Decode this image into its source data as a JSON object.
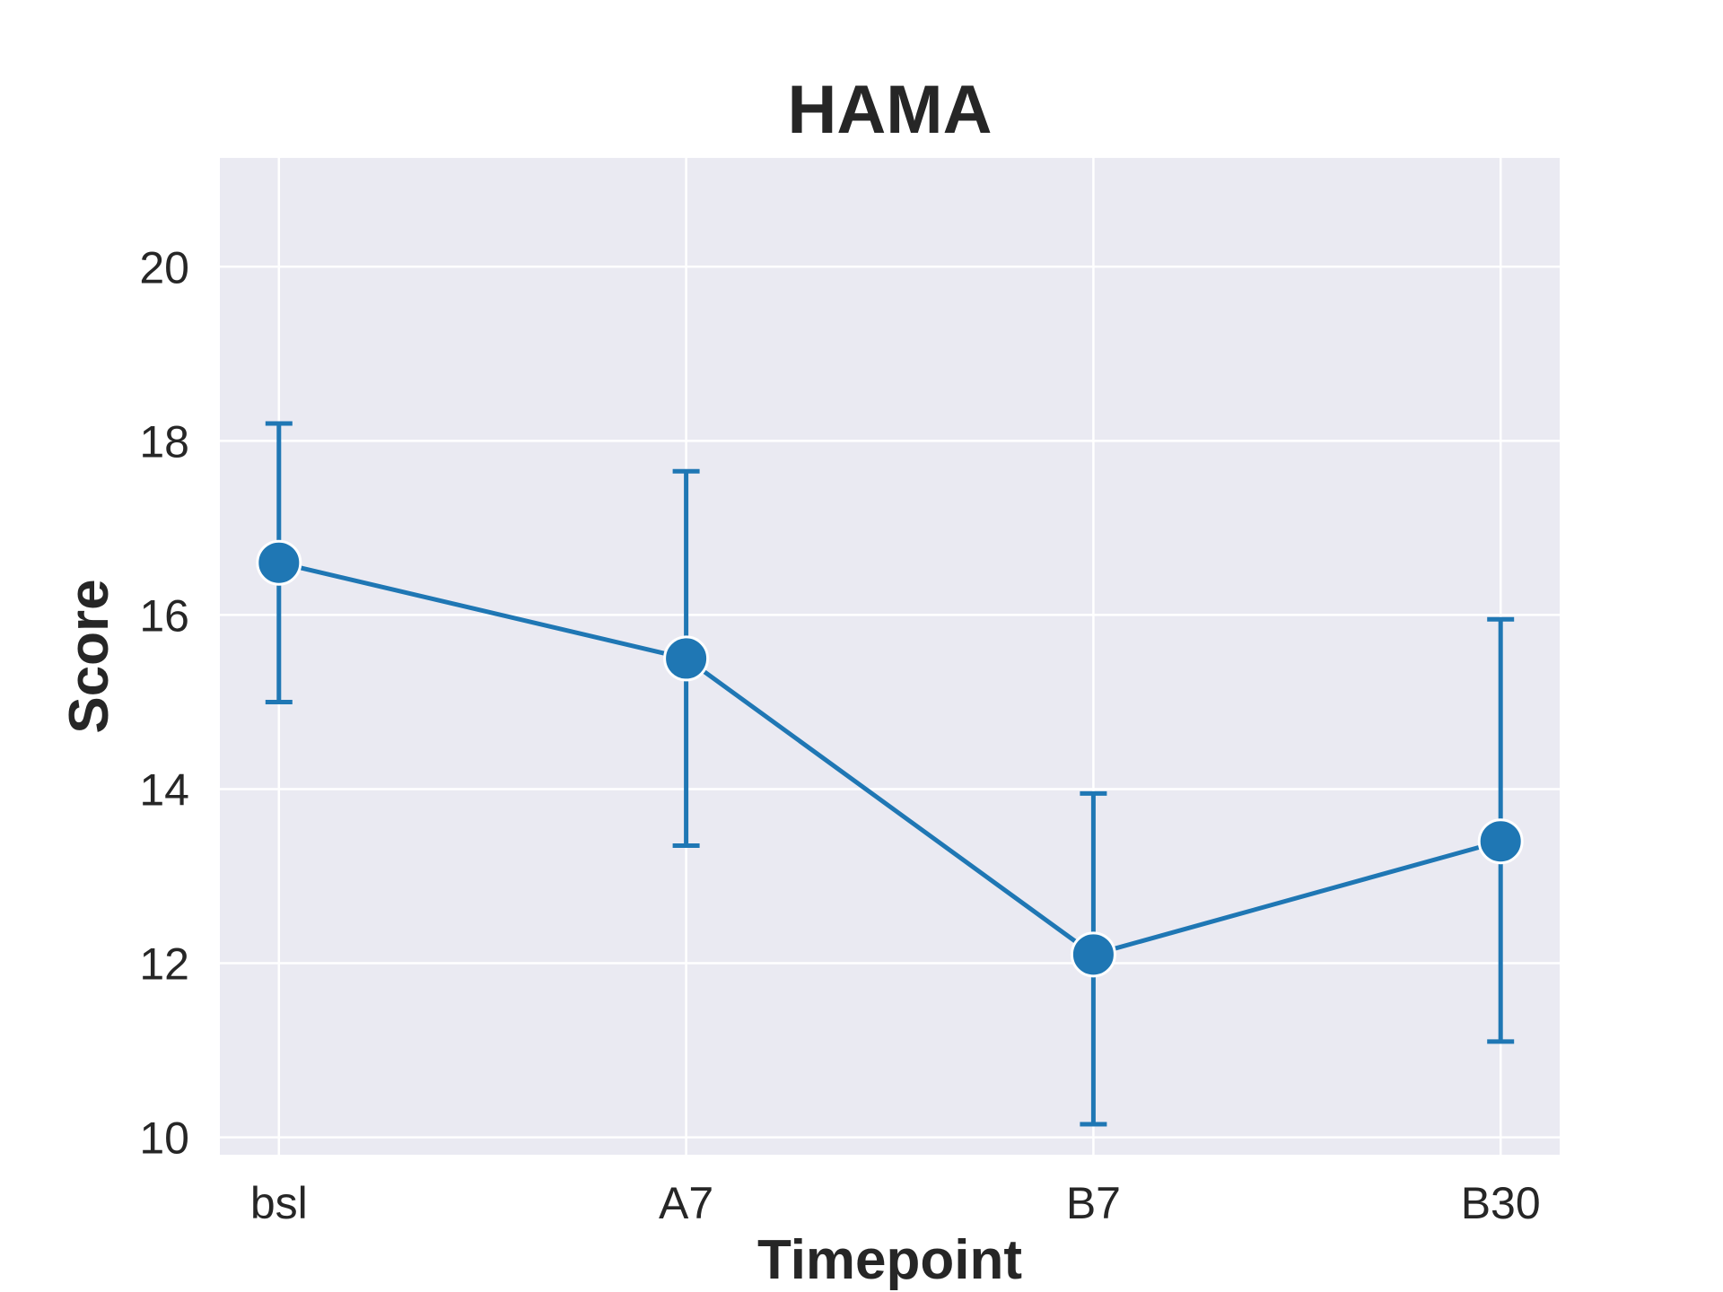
{
  "chart_data": {
    "type": "line",
    "title": "HAMA",
    "xlabel": "Timepoint",
    "ylabel": "Score",
    "categories": [
      "bsl",
      "A7",
      "B7",
      "B30"
    ],
    "series": [
      {
        "values": [
          16.6,
          15.5,
          12.1,
          13.4
        ],
        "error_low": [
          15.0,
          13.35,
          10.15,
          11.1
        ],
        "error_high": [
          18.2,
          17.65,
          13.95,
          15.95
        ],
        "color": "#1f77b4"
      }
    ],
    "ylim": [
      9.8,
      21.25
    ],
    "yticks": [
      10,
      12,
      14,
      16,
      18,
      20
    ],
    "grid": true,
    "background": "#eaeaf2",
    "grid_color": "#ffffff"
  }
}
